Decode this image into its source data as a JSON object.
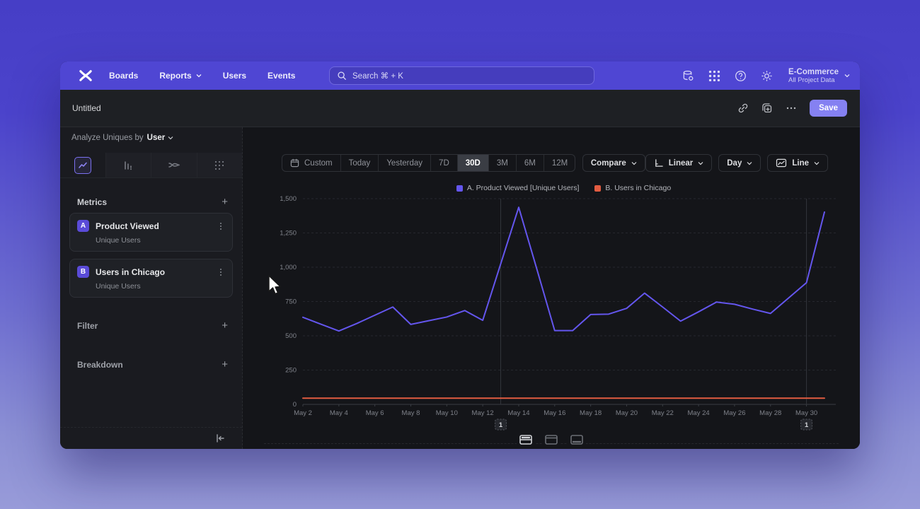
{
  "app": {
    "name": "Mixpanel Insights"
  },
  "nav": {
    "items": [
      "Boards",
      "Reports",
      "Users",
      "Events"
    ],
    "search_placeholder": "Search  ⌘ + K",
    "project_name": "E-Commerce",
    "project_subtitle": "All Project Data"
  },
  "titlebar": {
    "title": "Untitled",
    "save_label": "Save"
  },
  "sidebar": {
    "analyze_prefix": "Analyze Uniques by",
    "analyze_value": "User",
    "metrics_header": "Metrics",
    "metrics": [
      {
        "badge": "A",
        "title": "Product Viewed",
        "subtitle": "Unique Users"
      },
      {
        "badge": "B",
        "title": "Users in Chicago",
        "subtitle": "Unique Users"
      }
    ],
    "filter_label": "Filter",
    "breakdown_label": "Breakdown"
  },
  "controls": {
    "ranges": [
      "Custom",
      "Today",
      "Yesterday",
      "7D",
      "30D",
      "3M",
      "6M",
      "12M"
    ],
    "selected_range": "30D",
    "compare_label": "Compare",
    "scale_label": "Linear",
    "interval_label": "Day",
    "chart_type_label": "Line"
  },
  "chart_data": {
    "type": "line",
    "x": [
      "May 2",
      "May 3",
      "May 4",
      "May 5",
      "May 6",
      "May 7",
      "May 8",
      "May 9",
      "May 10",
      "May 11",
      "May 12",
      "May 13",
      "May 14",
      "May 15",
      "May 16",
      "May 17",
      "May 18",
      "May 19",
      "May 20",
      "May 21",
      "May 22",
      "May 23",
      "May 24",
      "May 25",
      "May 26",
      "May 27",
      "May 28",
      "May 29",
      "May 30",
      "May 31"
    ],
    "x_tick_every": 2,
    "ylim": [
      0,
      1500
    ],
    "yticks": [
      0,
      250,
      500,
      750,
      1000,
      1250,
      1500
    ],
    "ytick_labels": [
      "0",
      "250",
      "500",
      "750",
      "1,000",
      "1,250",
      "1,500"
    ],
    "grid": "horizontal-dashed",
    "legend_position": "top-center",
    "series": [
      {
        "name": "A. Product Viewed [Unique Users]",
        "color": "#6456ee",
        "values": [
          635,
          585,
          535,
          590,
          650,
          710,
          583,
          610,
          637,
          684,
          613,
          1025,
          1437,
          990,
          538,
          538,
          655,
          658,
          700,
          811,
          710,
          607,
          675,
          746,
          730,
          695,
          663,
          775,
          887,
          1402
        ]
      },
      {
        "name": "B. Users in Chicago",
        "color": "#e25c41",
        "values": [
          45,
          45,
          45,
          45,
          45,
          45,
          45,
          45,
          45,
          45,
          45,
          45,
          45,
          45,
          45,
          45,
          45,
          45,
          45,
          45,
          45,
          45,
          45,
          45,
          45,
          45,
          45,
          45,
          45,
          45
        ]
      }
    ],
    "annotations": [
      {
        "label": "1",
        "x": "May 13",
        "index": 11
      },
      {
        "label": "1",
        "x": "May 30",
        "index": 28
      }
    ]
  }
}
